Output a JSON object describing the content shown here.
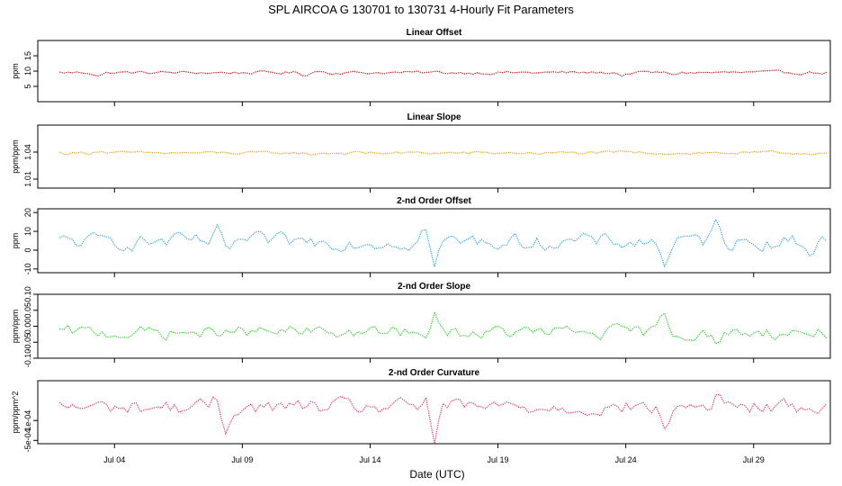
{
  "title": "SPL   AIRCOA G   130701 to 130731   4-Hourly Fit Parameters",
  "xlabel": "Date (UTC)",
  "xticks": [
    "Jul 04",
    "Jul 09",
    "Jul 14",
    "Jul 19",
    "Jul 24",
    "Jul 29"
  ],
  "chart_data": [
    {
      "type": "line",
      "title": "Linear Offset",
      "ylabel": "ppm",
      "ylim": [
        0,
        20
      ],
      "yticks": [
        "5",
        "10",
        "15"
      ],
      "yticks_values": [
        5,
        10,
        15
      ],
      "color": "#cc0000",
      "x_range_days": [
        1,
        32
      ],
      "series": [
        {
          "name": "Linear Offset",
          "baseline": 9.5,
          "noise": 0.45,
          "events": [
            [
              3.4,
              -1.0
            ],
            [
              11.4,
              -0.8
            ],
            [
              12.0,
              0.6
            ],
            [
              23.9,
              -1.0
            ],
            [
              25.8,
              -0.6
            ]
          ]
        }
      ]
    },
    {
      "type": "line",
      "title": "Linear Slope",
      "ylabel": "ppm/ppm",
      "ylim": [
        1.0,
        1.07
      ],
      "yticks": [
        "1.01",
        "1.04"
      ],
      "yticks_values": [
        1.01,
        1.04
      ],
      "color": "#e69a00",
      "x_range_days": [
        1,
        32
      ],
      "series": [
        {
          "name": "Linear Slope",
          "baseline": 1.039,
          "noise": 0.0015,
          "events": [
            [
              3.4,
              0.003
            ],
            [
              11.6,
              -0.002
            ],
            [
              24.0,
              0.002
            ]
          ]
        }
      ]
    },
    {
      "type": "line",
      "title": "2-nd Order Offset",
      "ylabel": "ppm",
      "ylim": [
        -12,
        22
      ],
      "yticks": [
        "-10",
        "0",
        "10",
        "20"
      ],
      "yticks_values": [
        -10,
        0,
        10,
        20
      ],
      "color": "#2aa0e0",
      "x_range_days": [
        1,
        32
      ],
      "series": [
        {
          "name": "2-nd Order Offset",
          "baseline": 4.5,
          "noise": 3.5,
          "events": [
            [
              8.1,
              9
            ],
            [
              8.3,
              -11
            ],
            [
              16.2,
              10
            ],
            [
              16.5,
              -15
            ],
            [
              25.5,
              -12
            ],
            [
              27.6,
              12
            ],
            [
              31.2,
              -5
            ]
          ]
        }
      ]
    },
    {
      "type": "line",
      "title": "2-nd Order Slope",
      "ylabel": "ppm/ppm",
      "ylim": [
        -0.1,
        0.1
      ],
      "yticks": [
        "-0.10",
        "-0.05",
        "0.00",
        "0.05",
        "0.10"
      ],
      "yticks_values": [
        -0.1,
        -0.05,
        0.0,
        0.05,
        0.1
      ],
      "color": "#22cc22",
      "x_range_days": [
        1,
        32
      ],
      "series": [
        {
          "name": "2-nd Order Slope",
          "baseline": -0.02,
          "noise": 0.018,
          "events": [
            [
              8.1,
              -0.05
            ],
            [
              8.3,
              0.05
            ],
            [
              16.2,
              -0.05
            ],
            [
              16.5,
              0.08
            ],
            [
              25.5,
              0.06
            ],
            [
              27.6,
              -0.06
            ]
          ]
        }
      ]
    },
    {
      "type": "line",
      "title": "2-nd Order Curvature",
      "ylabel": "ppm/ppm^2",
      "ylim": [
        -0.0006,
        0.0013
      ],
      "yticks": [
        "-5e-04",
        "1e-04"
      ],
      "yticks_values": [
        -0.0005,
        0.0001
      ],
      "color": "#e8305a",
      "x_range_days": [
        1,
        32
      ],
      "series": [
        {
          "name": "2-nd Order Curvature",
          "baseline": 0.0005,
          "noise": 0.0002,
          "events": [
            [
              8.1,
              0.0004
            ],
            [
              8.3,
              -0.0009
            ],
            [
              16.2,
              0.0004
            ],
            [
              16.5,
              -0.0011
            ],
            [
              25.5,
              -0.0008
            ],
            [
              27.6,
              0.0005
            ]
          ]
        }
      ]
    }
  ]
}
